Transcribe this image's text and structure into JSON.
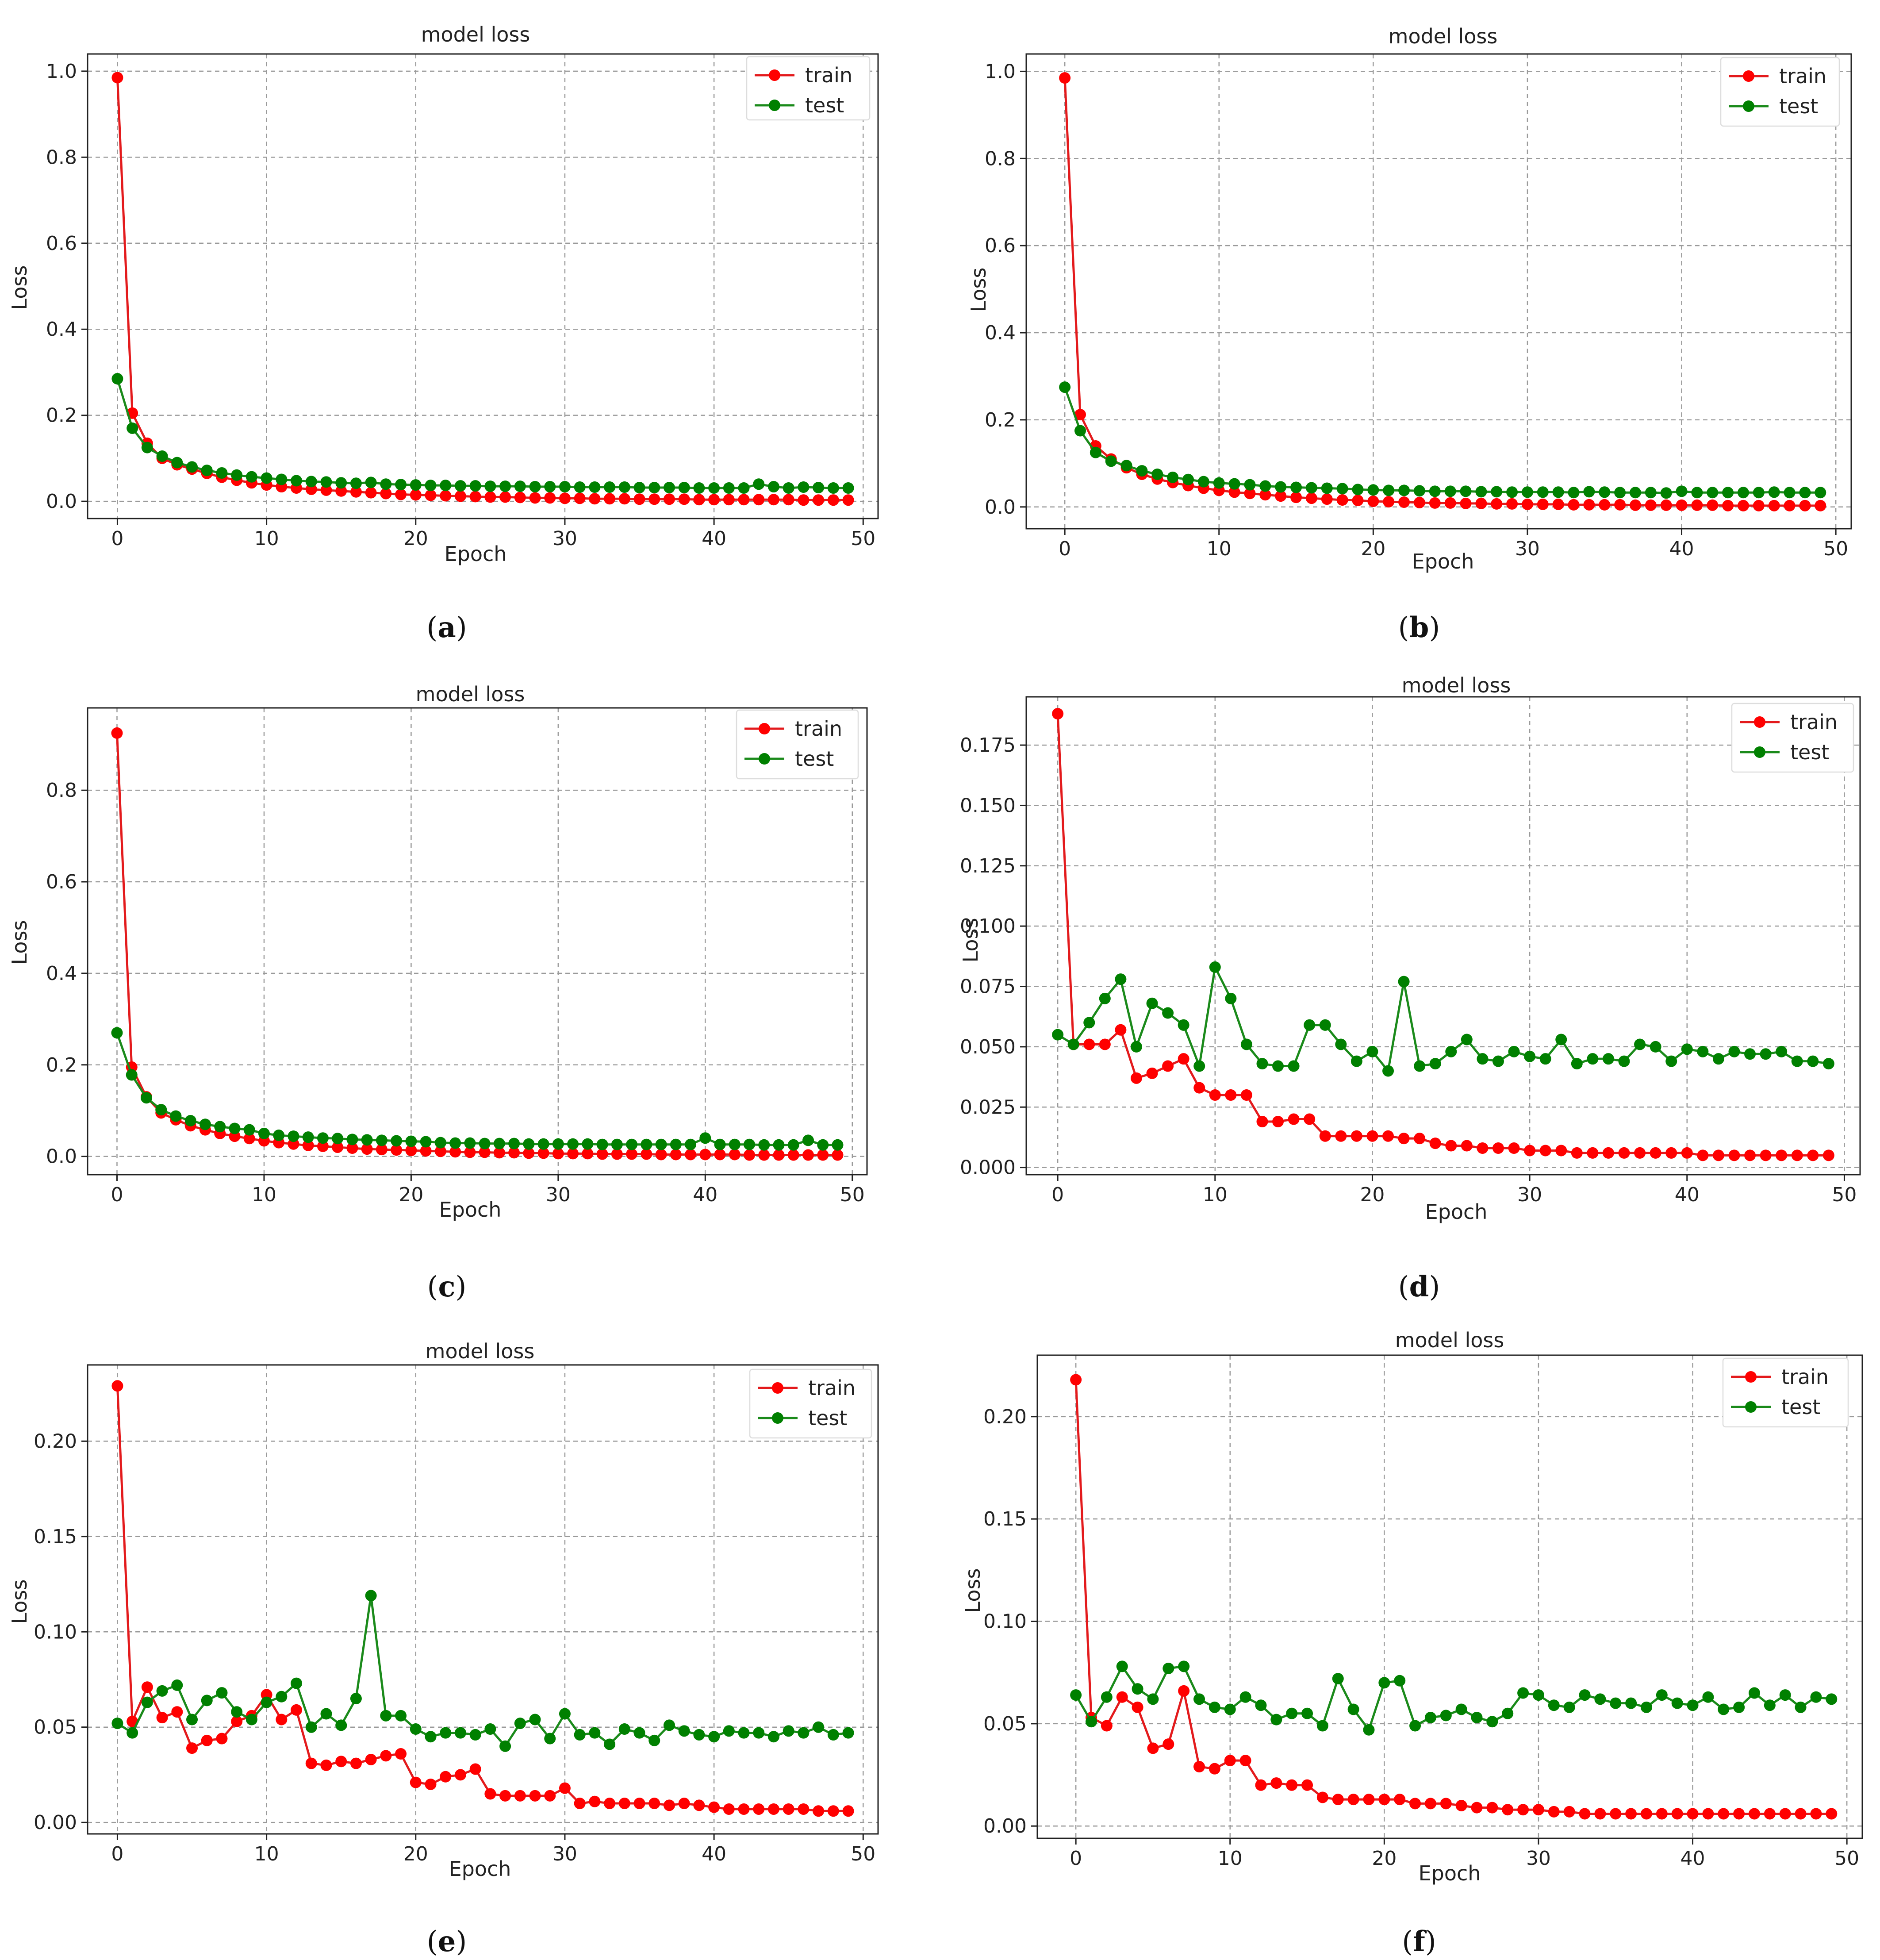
{
  "colors": {
    "train": "#ff0000",
    "test": "#008000",
    "train_line": "#e31a1c",
    "test_line": "#1a8a1a"
  },
  "chart_data": [
    {
      "panel": "a",
      "type": "line",
      "title": "model loss",
      "xlabel": "Epoch",
      "ylabel": "Loss",
      "xlim": [
        -2,
        51
      ],
      "ylim": [
        -0.04,
        1.04
      ],
      "xticks": [
        "0",
        "10",
        "20",
        "30",
        "40",
        "50"
      ],
      "xtick_values": [
        0,
        10,
        20,
        30,
        40,
        50
      ],
      "yticks": [
        "0.0",
        "0.2",
        "0.4",
        "0.6",
        "0.8",
        "1.0"
      ],
      "ytick_values": [
        0.0,
        0.2,
        0.4,
        0.6,
        0.8,
        1.0
      ],
      "legend": [
        "train",
        "test"
      ],
      "legend_position": "top-right",
      "caption": "a",
      "series": [
        {
          "name": "train",
          "values": [
            0.985,
            0.205,
            0.135,
            0.1,
            0.085,
            0.075,
            0.065,
            0.056,
            0.049,
            0.043,
            0.038,
            0.034,
            0.031,
            0.028,
            0.026,
            0.024,
            0.022,
            0.02,
            0.018,
            0.016,
            0.015,
            0.014,
            0.013,
            0.012,
            0.011,
            0.01,
            0.01,
            0.009,
            0.008,
            0.008,
            0.007,
            0.007,
            0.006,
            0.006,
            0.006,
            0.005,
            0.005,
            0.005,
            0.005,
            0.004,
            0.004,
            0.004,
            0.004,
            0.004,
            0.004,
            0.004,
            0.003,
            0.003,
            0.003,
            0.003
          ]
        },
        {
          "name": "test",
          "values": [
            0.285,
            0.17,
            0.125,
            0.105,
            0.09,
            0.08,
            0.072,
            0.066,
            0.061,
            0.057,
            0.054,
            0.051,
            0.048,
            0.046,
            0.045,
            0.043,
            0.042,
            0.044,
            0.04,
            0.039,
            0.038,
            0.037,
            0.037,
            0.036,
            0.036,
            0.035,
            0.035,
            0.035,
            0.034,
            0.034,
            0.034,
            0.033,
            0.033,
            0.033,
            0.033,
            0.032,
            0.032,
            0.032,
            0.032,
            0.031,
            0.031,
            0.031,
            0.031,
            0.04,
            0.034,
            0.031,
            0.033,
            0.032,
            0.031,
            0.031
          ]
        }
      ]
    },
    {
      "panel": "b",
      "type": "line",
      "title": "model loss",
      "xlabel": "Epoch",
      "ylabel": "Loss",
      "xlim": [
        -2.5,
        51
      ],
      "ylim": [
        -0.05,
        1.04
      ],
      "xticks": [
        "0",
        "10",
        "20",
        "30",
        "40",
        "50"
      ],
      "xtick_values": [
        0,
        10,
        20,
        30,
        40,
        50
      ],
      "yticks": [
        "0.0",
        "0.2",
        "0.4",
        "0.6",
        "0.8",
        "1.0"
      ],
      "ytick_values": [
        0.0,
        0.2,
        0.4,
        0.6,
        0.8,
        1.0
      ],
      "legend": [
        "train",
        "test"
      ],
      "legend_position": "top-right",
      "caption": "b",
      "series": [
        {
          "name": "train",
          "values": [
            0.985,
            0.212,
            0.14,
            0.11,
            0.09,
            0.075,
            0.064,
            0.056,
            0.049,
            0.043,
            0.038,
            0.034,
            0.031,
            0.028,
            0.025,
            0.022,
            0.02,
            0.018,
            0.016,
            0.015,
            0.013,
            0.012,
            0.011,
            0.01,
            0.009,
            0.009,
            0.008,
            0.008,
            0.007,
            0.007,
            0.006,
            0.006,
            0.006,
            0.005,
            0.005,
            0.005,
            0.005,
            0.004,
            0.004,
            0.004,
            0.004,
            0.004,
            0.004,
            0.003,
            0.003,
            0.003,
            0.003,
            0.003,
            0.003,
            0.003
          ]
        },
        {
          "name": "test",
          "values": [
            0.275,
            0.175,
            0.125,
            0.105,
            0.095,
            0.083,
            0.075,
            0.068,
            0.063,
            0.058,
            0.055,
            0.053,
            0.051,
            0.048,
            0.046,
            0.045,
            0.044,
            0.043,
            0.042,
            0.04,
            0.039,
            0.038,
            0.038,
            0.037,
            0.036,
            0.036,
            0.036,
            0.035,
            0.035,
            0.034,
            0.034,
            0.034,
            0.034,
            0.033,
            0.035,
            0.034,
            0.033,
            0.033,
            0.033,
            0.032,
            0.036,
            0.033,
            0.033,
            0.033,
            0.033,
            0.033,
            0.034,
            0.033,
            0.033,
            0.033
          ]
        }
      ]
    },
    {
      "panel": "c",
      "type": "line",
      "title": "model loss",
      "xlabel": "Epoch",
      "ylabel": "Loss",
      "xlim": [
        -2,
        51
      ],
      "ylim": [
        -0.04,
        0.98
      ],
      "xticks": [
        "0",
        "10",
        "20",
        "30",
        "40",
        "50"
      ],
      "xtick_values": [
        0,
        10,
        20,
        30,
        40,
        50
      ],
      "yticks": [
        "0.0",
        "0.2",
        "0.4",
        "0.6",
        "0.8"
      ],
      "ytick_values": [
        0.0,
        0.2,
        0.4,
        0.6,
        0.8
      ],
      "legend": [
        "train",
        "test"
      ],
      "legend_position": "top-right",
      "caption": "c",
      "series": [
        {
          "name": "train",
          "values": [
            0.925,
            0.195,
            0.13,
            0.095,
            0.08,
            0.067,
            0.058,
            0.05,
            0.044,
            0.039,
            0.034,
            0.03,
            0.027,
            0.024,
            0.022,
            0.02,
            0.018,
            0.016,
            0.015,
            0.014,
            0.013,
            0.012,
            0.011,
            0.01,
            0.009,
            0.009,
            0.008,
            0.008,
            0.007,
            0.007,
            0.006,
            0.006,
            0.006,
            0.005,
            0.005,
            0.005,
            0.005,
            0.004,
            0.004,
            0.004,
            0.004,
            0.004,
            0.004,
            0.003,
            0.003,
            0.003,
            0.003,
            0.003,
            0.003,
            0.003
          ]
        },
        {
          "name": "test",
          "values": [
            0.27,
            0.178,
            0.128,
            0.102,
            0.088,
            0.078,
            0.07,
            0.065,
            0.061,
            0.058,
            0.05,
            0.046,
            0.044,
            0.042,
            0.04,
            0.039,
            0.037,
            0.036,
            0.035,
            0.034,
            0.033,
            0.032,
            0.03,
            0.029,
            0.029,
            0.028,
            0.028,
            0.028,
            0.027,
            0.027,
            0.027,
            0.027,
            0.027,
            0.026,
            0.026,
            0.026,
            0.026,
            0.026,
            0.026,
            0.026,
            0.04,
            0.026,
            0.026,
            0.026,
            0.025,
            0.025,
            0.025,
            0.035,
            0.025,
            0.025
          ]
        }
      ]
    },
    {
      "panel": "d",
      "type": "line",
      "title": "model loss",
      "xlabel": "Epoch",
      "ylabel": "Loss",
      "xlim": [
        -2,
        51
      ],
      "ylim": [
        -0.003,
        0.195
      ],
      "xticks": [
        "0",
        "10",
        "20",
        "30",
        "40",
        "50"
      ],
      "xtick_values": [
        0,
        10,
        20,
        30,
        40,
        50
      ],
      "yticks": [
        "0.000",
        "0.025",
        "0.050",
        "0.075",
        "0.100",
        "0.125",
        "0.150",
        "0.175"
      ],
      "ytick_values": [
        0.0,
        0.025,
        0.05,
        0.075,
        0.1,
        0.125,
        0.15,
        0.175
      ],
      "legend": [
        "train",
        "test"
      ],
      "legend_position": "top-right",
      "caption": "d",
      "series": [
        {
          "name": "train",
          "values": [
            0.188,
            0.051,
            0.051,
            0.051,
            0.057,
            0.037,
            0.039,
            0.042,
            0.045,
            0.033,
            0.03,
            0.03,
            0.03,
            0.019,
            0.019,
            0.02,
            0.02,
            0.013,
            0.013,
            0.013,
            0.013,
            0.013,
            0.012,
            0.012,
            0.01,
            0.009,
            0.009,
            0.008,
            0.008,
            0.008,
            0.007,
            0.007,
            0.007,
            0.006,
            0.006,
            0.006,
            0.006,
            0.006,
            0.006,
            0.006,
            0.006,
            0.005,
            0.005,
            0.005,
            0.005,
            0.005,
            0.005,
            0.005,
            0.005,
            0.005
          ]
        },
        {
          "name": "test",
          "values": [
            0.055,
            0.051,
            0.06,
            0.07,
            0.078,
            0.05,
            0.068,
            0.064,
            0.059,
            0.042,
            0.083,
            0.07,
            0.051,
            0.043,
            0.042,
            0.042,
            0.059,
            0.059,
            0.051,
            0.044,
            0.048,
            0.04,
            0.077,
            0.042,
            0.043,
            0.048,
            0.053,
            0.045,
            0.044,
            0.048,
            0.046,
            0.045,
            0.053,
            0.043,
            0.045,
            0.045,
            0.044,
            0.051,
            0.05,
            0.044,
            0.049,
            0.048,
            0.045,
            0.048,
            0.047,
            0.047,
            0.048,
            0.044,
            0.044,
            0.043
          ]
        }
      ]
    },
    {
      "panel": "e",
      "type": "line",
      "title": "model loss",
      "xlabel": "Epoch",
      "ylabel": "Loss",
      "xlim": [
        -2,
        51
      ],
      "ylim": [
        -0.006,
        0.24
      ],
      "xticks": [
        "0",
        "10",
        "20",
        "30",
        "40",
        "50"
      ],
      "xtick_values": [
        0,
        10,
        20,
        30,
        40,
        50
      ],
      "yticks": [
        "0.00",
        "0.05",
        "0.10",
        "0.15",
        "0.20"
      ],
      "ytick_values": [
        0.0,
        0.05,
        0.1,
        0.15,
        0.2
      ],
      "legend": [
        "train",
        "test"
      ],
      "legend_position": "top-right",
      "caption": "e",
      "series": [
        {
          "name": "train",
          "values": [
            0.229,
            0.053,
            0.071,
            0.055,
            0.058,
            0.039,
            0.043,
            0.044,
            0.053,
            0.056,
            0.067,
            0.054,
            0.059,
            0.031,
            0.03,
            0.032,
            0.031,
            0.033,
            0.035,
            0.036,
            0.021,
            0.02,
            0.024,
            0.025,
            0.028,
            0.015,
            0.014,
            0.014,
            0.014,
            0.014,
            0.018,
            0.01,
            0.011,
            0.01,
            0.01,
            0.01,
            0.01,
            0.009,
            0.01,
            0.009,
            0.008,
            0.007,
            0.007,
            0.007,
            0.007,
            0.007,
            0.007,
            0.006,
            0.006,
            0.006
          ]
        },
        {
          "name": "test",
          "values": [
            0.052,
            0.047,
            0.063,
            0.069,
            0.072,
            0.054,
            0.064,
            0.068,
            0.058,
            0.054,
            0.063,
            0.066,
            0.073,
            0.05,
            0.057,
            0.051,
            0.065,
            0.119,
            0.056,
            0.056,
            0.049,
            0.045,
            0.047,
            0.047,
            0.046,
            0.049,
            0.04,
            0.052,
            0.054,
            0.044,
            0.057,
            0.046,
            0.047,
            0.041,
            0.049,
            0.047,
            0.043,
            0.051,
            0.048,
            0.046,
            0.045,
            0.048,
            0.047,
            0.047,
            0.045,
            0.048,
            0.047,
            0.05,
            0.046,
            0.047
          ]
        }
      ]
    },
    {
      "panel": "f",
      "type": "line",
      "title": "model loss",
      "xlabel": "Epoch",
      "ylabel": "Loss",
      "xlim": [
        -2.5,
        51
      ],
      "ylim": [
        -0.006,
        0.23
      ],
      "xticks": [
        "0",
        "10",
        "20",
        "30",
        "40",
        "50"
      ],
      "xtick_values": [
        0,
        10,
        20,
        30,
        40,
        50
      ],
      "yticks": [
        "0.00",
        "0.05",
        "0.10",
        "0.15",
        "0.20"
      ],
      "ytick_values": [
        0.0,
        0.05,
        0.1,
        0.15,
        0.2
      ],
      "legend": [
        "train",
        "test"
      ],
      "legend_position": "top-right",
      "caption": "f",
      "series": [
        {
          "name": "train",
          "values": [
            0.218,
            0.053,
            0.049,
            0.063,
            0.058,
            0.038,
            0.04,
            0.066,
            0.029,
            0.028,
            0.032,
            0.032,
            0.02,
            0.021,
            0.02,
            0.02,
            0.014,
            0.013,
            0.013,
            0.013,
            0.013,
            0.013,
            0.011,
            0.011,
            0.011,
            0.01,
            0.009,
            0.009,
            0.008,
            0.008,
            0.008,
            0.007,
            0.007,
            0.006,
            0.006,
            0.006,
            0.006,
            0.006,
            0.006,
            0.006,
            0.006,
            0.006,
            0.006,
            0.006,
            0.006,
            0.006,
            0.006,
            0.006,
            0.006,
            0.006
          ]
        },
        {
          "name": "test",
          "values": [
            0.064,
            0.051,
            0.063,
            0.078,
            0.067,
            0.062,
            0.077,
            0.078,
            0.062,
            0.058,
            0.057,
            0.063,
            0.059,
            0.052,
            0.055,
            0.055,
            0.049,
            0.072,
            0.057,
            0.047,
            0.07,
            0.071,
            0.049,
            0.053,
            0.054,
            0.057,
            0.053,
            0.051,
            0.055,
            0.065,
            0.064,
            0.059,
            0.058,
            0.064,
            0.062,
            0.06,
            0.06,
            0.058,
            0.064,
            0.06,
            0.059,
            0.063,
            0.057,
            0.058,
            0.065,
            0.059,
            0.064,
            0.058,
            0.063,
            0.062
          ]
        }
      ]
    }
  ]
}
